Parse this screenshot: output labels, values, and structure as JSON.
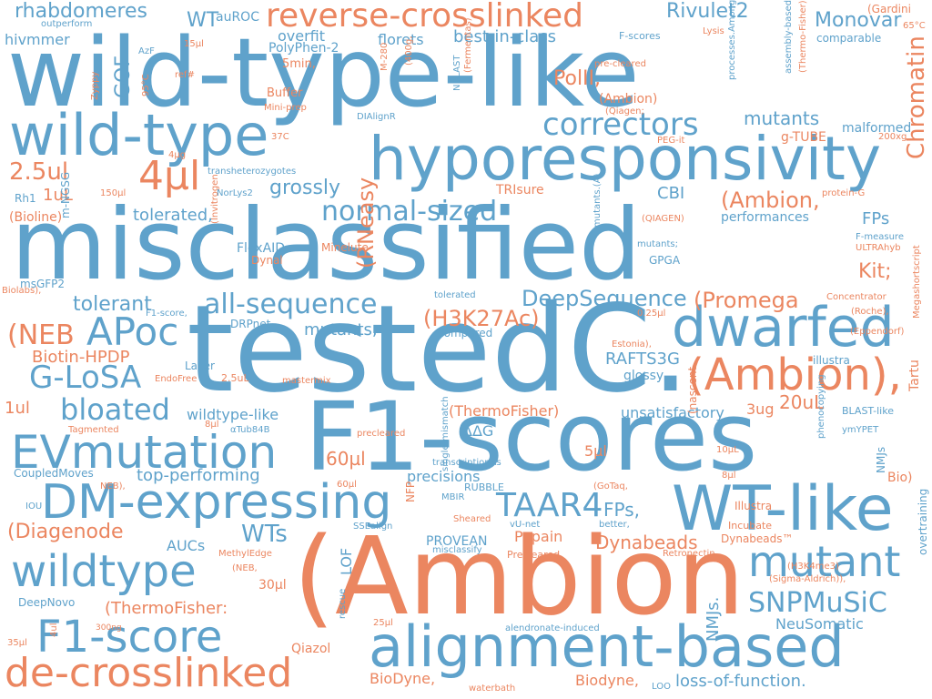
{
  "colors": {
    "blue": "#5fa2cb",
    "orange": "#eb8660"
  },
  "words": [
    {
      "t": "wild-type-like",
      "c": "blue"
    },
    {
      "t": "misclassified",
      "c": "blue"
    },
    {
      "t": "testedC.",
      "c": "blue"
    },
    {
      "t": "F1-scores",
      "c": "blue"
    },
    {
      "t": "(Ambion",
      "c": "orange"
    },
    {
      "t": "hyporesponsivity",
      "c": "blue"
    },
    {
      "t": "wild-type",
      "c": "blue"
    },
    {
      "t": "reverse-crosslinked",
      "c": "orange"
    },
    {
      "t": "alignment-based",
      "c": "blue"
    },
    {
      "t": "de-crosslinked",
      "c": "orange"
    },
    {
      "t": "DM-expressing",
      "c": "blue"
    },
    {
      "t": "EVmutation",
      "c": "blue"
    },
    {
      "t": "WT-like",
      "c": "blue"
    },
    {
      "t": "dwarfed",
      "c": "blue"
    },
    {
      "t": "(Ambion),",
      "c": "orange"
    },
    {
      "t": "wildtype",
      "c": "blue"
    },
    {
      "t": "F1-score",
      "c": "blue"
    },
    {
      "t": "mutant",
      "c": "blue"
    },
    {
      "t": "APoc",
      "c": "blue"
    },
    {
      "t": "correctors",
      "c": "blue"
    },
    {
      "t": "normal-sized",
      "c": "blue"
    },
    {
      "t": "SNPMuSiC",
      "c": "blue"
    },
    {
      "t": "TAAR4",
      "c": "blue"
    },
    {
      "t": "G-LoSA",
      "c": "blue"
    },
    {
      "t": "bloated",
      "c": "blue"
    },
    {
      "t": "all-sequence",
      "c": "blue"
    },
    {
      "t": "DeepSequence",
      "c": "blue"
    },
    {
      "t": "Chromatin",
      "c": "orange"
    },
    {
      "t": "4µl",
      "c": "orange"
    },
    {
      "t": "2.5ul",
      "c": "orange"
    },
    {
      "t": "(Ambion,",
      "c": "orange"
    },
    {
      "t": "(Promega",
      "c": "orange"
    },
    {
      "t": "(H3K27Ac)",
      "c": "orange"
    },
    {
      "t": "(NEB",
      "c": "orange"
    },
    {
      "t": "(RNeasy",
      "c": "orange"
    },
    {
      "t": "rhabdomeres",
      "c": "blue"
    },
    {
      "t": "Rivulet2",
      "c": "blue"
    },
    {
      "t": "Monovar",
      "c": "blue"
    },
    {
      "t": "best-in-class",
      "c": "blue"
    },
    {
      "t": "hivmmer",
      "c": "blue"
    },
    {
      "t": "WT",
      "c": "blue"
    },
    {
      "t": "auROC",
      "c": "blue"
    },
    {
      "t": "overfit",
      "c": "blue"
    },
    {
      "t": "PolyPhen-2",
      "c": "blue"
    },
    {
      "t": "florets",
      "c": "blue"
    },
    {
      "t": "GOF",
      "c": "blue"
    },
    {
      "t": "PolII,",
      "c": "orange"
    },
    {
      "t": "mutants",
      "c": "blue"
    },
    {
      "t": "malformed",
      "c": "blue"
    },
    {
      "t": "g-TUBE",
      "c": "orange"
    },
    {
      "t": "grossly",
      "c": "blue"
    },
    {
      "t": "tolerated,",
      "c": "blue"
    },
    {
      "t": "CBI",
      "c": "blue"
    },
    {
      "t": "FPs",
      "c": "blue"
    },
    {
      "t": "performances",
      "c": "blue"
    },
    {
      "t": "Kit;",
      "c": "orange"
    },
    {
      "t": "tolerant",
      "c": "blue"
    },
    {
      "t": "mutants,",
      "c": "blue"
    },
    {
      "t": "Biotin-HPDP",
      "c": "orange"
    },
    {
      "t": "RAFTS3G",
      "c": "blue"
    },
    {
      "t": "glossy",
      "c": "blue"
    },
    {
      "t": "unsatisfactory",
      "c": "blue"
    },
    {
      "t": "20uL",
      "c": "orange"
    },
    {
      "t": "3ug",
      "c": "orange"
    },
    {
      "t": "wildtype-like",
      "c": "blue"
    },
    {
      "t": "(ThermoFisher)",
      "c": "orange"
    },
    {
      "t": "ΔΔG",
      "c": "blue"
    },
    {
      "t": "60µl",
      "c": "orange"
    },
    {
      "t": "5µl",
      "c": "orange"
    },
    {
      "t": "top-performing",
      "c": "blue"
    },
    {
      "t": "precisions",
      "c": "blue"
    },
    {
      "t": "Papain",
      "c": "orange"
    },
    {
      "t": "FPs,",
      "c": "blue"
    },
    {
      "t": "WTs",
      "c": "blue"
    },
    {
      "t": "Dynabeads",
      "c": "orange"
    },
    {
      "t": "(Diagenode",
      "c": "orange"
    },
    {
      "t": "AUCs",
      "c": "blue"
    },
    {
      "t": "PROVEAN",
      "c": "blue"
    },
    {
      "t": "LOF",
      "c": "blue"
    },
    {
      "t": "NMJs.",
      "c": "blue"
    },
    {
      "t": "(ThermoFisher:",
      "c": "orange"
    },
    {
      "t": "NeuSomatic",
      "c": "blue"
    },
    {
      "t": "loss-of-function.",
      "c": "blue"
    },
    {
      "t": "BioDyne,",
      "c": "orange"
    },
    {
      "t": "Biodyne,",
      "c": "orange"
    },
    {
      "t": "Qiazol",
      "c": "orange"
    },
    {
      "t": "1uL",
      "c": "orange"
    },
    {
      "t": "1ul",
      "c": "orange"
    },
    {
      "t": "30µl",
      "c": "orange"
    },
    {
      "t": "DeepNovo",
      "c": "blue"
    },
    {
      "t": "CoupledMoves",
      "c": "blue"
    },
    {
      "t": "msGFP2",
      "c": "blue"
    },
    {
      "t": "Rh1",
      "c": "blue"
    },
    {
      "t": "(Bioline)",
      "c": "orange"
    },
    {
      "t": "m-NGSG",
      "c": "blue"
    },
    {
      "t": "FlexAID",
      "c": "blue"
    },
    {
      "t": "Dynal",
      "c": "orange"
    },
    {
      "t": "Minelute",
      "c": "orange"
    },
    {
      "t": "GPGA",
      "c": "blue"
    },
    {
      "t": "TRIsure",
      "c": "orange"
    },
    {
      "t": "DRPnet",
      "c": "blue"
    },
    {
      "t": "Lacer",
      "c": "blue"
    },
    {
      "t": "EndoFree",
      "c": "orange"
    },
    {
      "t": "2.5uL",
      "c": "orange"
    },
    {
      "t": "mastermix",
      "c": "orange"
    },
    {
      "t": "tolerated",
      "c": "blue"
    },
    {
      "t": "compared",
      "c": "blue"
    },
    {
      "t": "0.25µl",
      "c": "orange"
    },
    {
      "t": "illustra",
      "c": "blue"
    },
    {
      "t": "BLAST-like",
      "c": "blue"
    },
    {
      "t": "ymYPET",
      "c": "blue"
    },
    {
      "t": "Tartu",
      "c": "orange"
    },
    {
      "t": "Bio)",
      "c": "orange"
    },
    {
      "t": "NMJs",
      "c": "blue"
    },
    {
      "t": "Illustra",
      "c": "orange"
    },
    {
      "t": "Incubate",
      "c": "orange"
    },
    {
      "t": "Dynabeads™",
      "c": "orange"
    },
    {
      "t": "(H3K4me3)",
      "c": "orange"
    },
    {
      "t": "(Sigma-Aldrich)),",
      "c": "orange"
    },
    {
      "t": "overtraining",
      "c": "blue"
    },
    {
      "t": "(Gardini",
      "c": "orange"
    },
    {
      "t": "65°C",
      "c": "orange"
    },
    {
      "t": "comparable",
      "c": "blue"
    },
    {
      "t": "F-scores",
      "c": "blue"
    },
    {
      "t": "Lysis",
      "c": "orange"
    },
    {
      "t": "pre-cleared",
      "c": "orange"
    },
    {
      "t": "(Ambion)",
      "c": "orange"
    },
    {
      "t": "(Qiagen;",
      "c": "orange"
    },
    {
      "t": "PEG-it",
      "c": "orange"
    },
    {
      "t": "200xg",
      "c": "orange"
    },
    {
      "t": "protein-G",
      "c": "orange"
    },
    {
      "t": "(QIAGEN)",
      "c": "orange"
    },
    {
      "t": "F-measure",
      "c": "blue"
    },
    {
      "t": "ULTRAhyb",
      "c": "orange"
    },
    {
      "t": "mutants;",
      "c": "blue"
    },
    {
      "t": "Concentrator",
      "c": "orange"
    },
    {
      "t": "(Roche),",
      "c": "orange"
    },
    {
      "t": "(Eppendorf)",
      "c": "orange"
    },
    {
      "t": "Megashortscript",
      "c": "orange"
    },
    {
      "t": "Estonia),",
      "c": "orange"
    },
    {
      "t": "(nascent",
      "c": "orange"
    },
    {
      "t": "10µL",
      "c": "orange"
    },
    {
      "t": "8µl",
      "c": "orange"
    },
    {
      "t": "(GoTaq,",
      "c": "orange"
    },
    {
      "t": "better,",
      "c": "blue"
    },
    {
      "t": "vU-net",
      "c": "blue"
    },
    {
      "t": "Precleared",
      "c": "orange"
    },
    {
      "t": "Retronectin",
      "c": "orange"
    },
    {
      "t": "alendronate-induced",
      "c": "blue"
    },
    {
      "t": "LOO",
      "c": "blue"
    },
    {
      "t": "waterbath",
      "c": "orange"
    },
    {
      "t": "25µl",
      "c": "orange"
    },
    {
      "t": "misclassify",
      "c": "blue"
    },
    {
      "t": "SSEalign",
      "c": "blue"
    },
    {
      "t": "Sheared",
      "c": "orange"
    },
    {
      "t": "rescue",
      "c": "blue"
    },
    {
      "t": "RUBBLE",
      "c": "blue"
    },
    {
      "t": "MBIR",
      "c": "blue"
    },
    {
      "t": "transcriptionAs",
      "c": "blue"
    },
    {
      "t": "NFP",
      "c": "orange"
    },
    {
      "t": "single-mismatch",
      "c": "blue"
    },
    {
      "t": "precleared",
      "c": "orange"
    },
    {
      "t": "αTub84B",
      "c": "blue"
    },
    {
      "t": "Tagmented",
      "c": "orange"
    },
    {
      "t": "8µl",
      "c": "orange"
    },
    {
      "t": "60µl",
      "c": "orange"
    },
    {
      "t": "IOU",
      "c": "blue"
    },
    {
      "t": "NEB),",
      "c": "orange"
    },
    {
      "t": "MethylEdge",
      "c": "orange"
    },
    {
      "t": "(NEB,",
      "c": "orange"
    },
    {
      "t": "300ng",
      "c": "orange"
    },
    {
      "t": "35µl",
      "c": "orange"
    },
    {
      "t": "4ul",
      "c": "orange"
    },
    {
      "t": "Biolabs),",
      "c": "orange"
    },
    {
      "t": "F1-score,",
      "c": "blue"
    },
    {
      "t": "(Invitrogen",
      "c": "orange"
    },
    {
      "t": "150µl",
      "c": "orange"
    },
    {
      "t": "4µg",
      "c": "orange"
    },
    {
      "t": "37C",
      "c": "orange"
    },
    {
      "t": "transheterozygotes",
      "c": "blue"
    },
    {
      "t": "NorLys2",
      "c": "blue"
    },
    {
      "t": "DIAlignR",
      "c": "blue"
    },
    {
      "t": "(400g,",
      "c": "orange"
    },
    {
      "t": "M-280",
      "c": "orange"
    },
    {
      "t": "NBLAST",
      "c": "blue"
    },
    {
      "t": "(Fermentas)",
      "c": "orange"
    },
    {
      "t": "mutants.(A)",
      "c": "blue"
    },
    {
      "t": "processes.Among",
      "c": "blue"
    },
    {
      "t": "assembly-based",
      "c": "blue"
    },
    {
      "t": "(Thermo-Fisher)",
      "c": "orange"
    },
    {
      "t": "phenocopying",
      "c": "blue"
    },
    {
      "t": "Mini-prep",
      "c": "orange"
    },
    {
      "t": "Buffer",
      "c": "orange"
    },
    {
      "t": "5min,",
      "c": "orange"
    },
    {
      "t": "ref#",
      "c": "orange"
    },
    {
      "t": "95°C",
      "c": "orange"
    },
    {
      "t": "Zyppy",
      "c": "orange"
    },
    {
      "t": "outperform",
      "c": "blue"
    },
    {
      "t": "AzF",
      "c": "blue"
    },
    {
      "t": "15µl",
      "c": "orange"
    }
  ]
}
